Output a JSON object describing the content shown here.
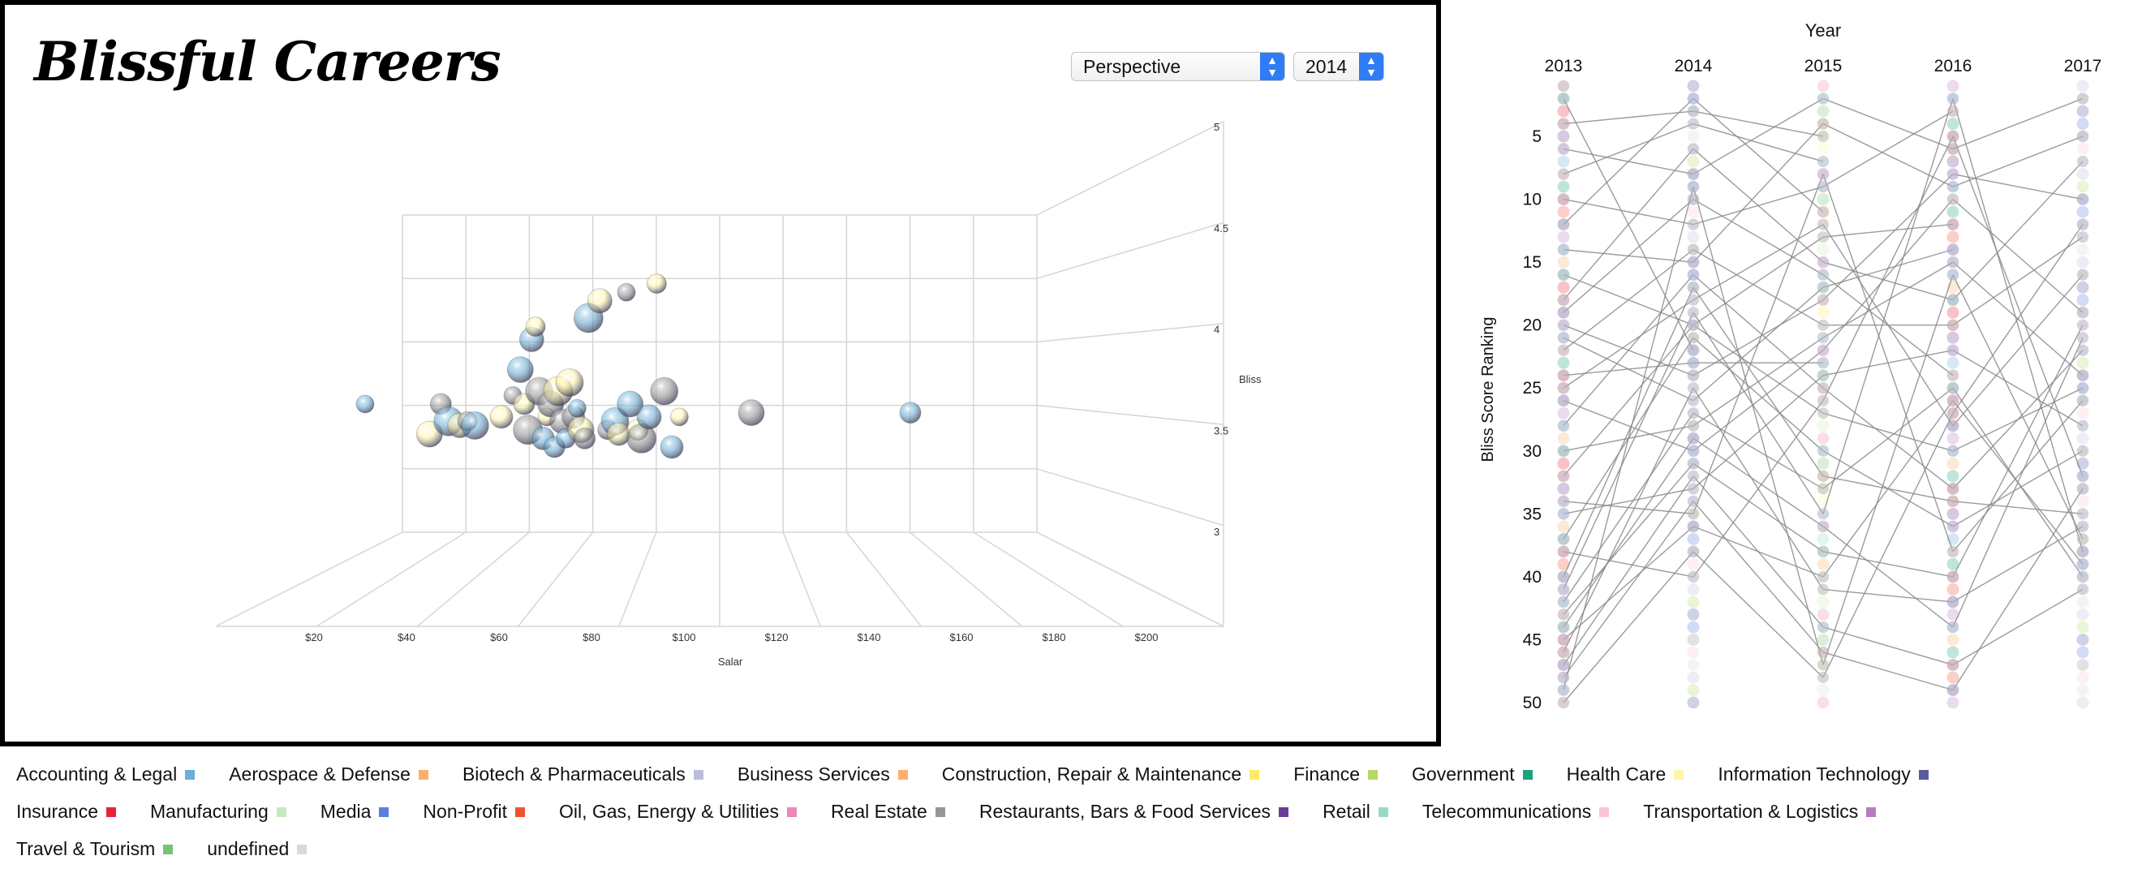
{
  "page": {
    "title": "Blissful Careers"
  },
  "controls": {
    "view_select": "Perspective",
    "year_select": "2014"
  },
  "chart_data": [
    {
      "type": "scatter",
      "title": "",
      "xlabel": "Salar",
      "ylabel": "Bliss",
      "x_ticks": [
        "$20",
        "$40",
        "$60",
        "$80",
        "$100",
        "$120",
        "$140",
        "$160",
        "$180",
        "$200"
      ],
      "y_ticks": [
        "3",
        "3.5",
        "4",
        "4.5",
        "5"
      ],
      "xlim": [
        10,
        210
      ],
      "ylim": [
        3,
        5
      ],
      "series": [
        {
          "values": [
            {
              "x": 16,
              "y": 3.7
            },
            {
              "x": 33,
              "y": 3.63
            },
            {
              "x": 36,
              "y": 3.7
            },
            {
              "x": 38,
              "y": 3.66
            },
            {
              "x": 41,
              "y": 3.65
            },
            {
              "x": 43,
              "y": 3.66
            },
            {
              "x": 45,
              "y": 3.65
            },
            {
              "x": 52,
              "y": 3.67
            },
            {
              "x": 55,
              "y": 3.72
            },
            {
              "x": 57,
              "y": 3.78
            },
            {
              "x": 58,
              "y": 3.7
            },
            {
              "x": 59,
              "y": 3.64
            },
            {
              "x": 60,
              "y": 3.85
            },
            {
              "x": 61,
              "y": 3.88
            },
            {
              "x": 62,
              "y": 3.73
            },
            {
              "x": 63,
              "y": 3.62
            },
            {
              "x": 64,
              "y": 3.67
            },
            {
              "x": 65,
              "y": 3.7
            },
            {
              "x": 66,
              "y": 3.6
            },
            {
              "x": 67,
              "y": 3.73
            },
            {
              "x": 68,
              "y": 3.66
            },
            {
              "x": 69,
              "y": 3.62
            },
            {
              "x": 70,
              "y": 3.75
            },
            {
              "x": 71,
              "y": 3.67
            },
            {
              "x": 72,
              "y": 3.69
            },
            {
              "x": 73,
              "y": 3.64
            },
            {
              "x": 74,
              "y": 3.62
            },
            {
              "x": 75,
              "y": 3.9
            },
            {
              "x": 78,
              "y": 3.94
            },
            {
              "x": 80,
              "y": 3.64
            },
            {
              "x": 82,
              "y": 3.66
            },
            {
              "x": 83,
              "y": 3.63
            },
            {
              "x": 85,
              "y": 3.96
            },
            {
              "x": 86,
              "y": 3.7
            },
            {
              "x": 88,
              "y": 3.64
            },
            {
              "x": 89,
              "y": 3.62
            },
            {
              "x": 91,
              "y": 3.67
            },
            {
              "x": 93,
              "y": 3.98
            },
            {
              "x": 95,
              "y": 3.73
            },
            {
              "x": 97,
              "y": 3.6
            },
            {
              "x": 99,
              "y": 3.67
            },
            {
              "x": 118,
              "y": 3.68
            },
            {
              "x": 160,
              "y": 3.68
            }
          ]
        }
      ]
    },
    {
      "type": "line",
      "title": "Year",
      "ylabel": "Bliss Score Ranking",
      "categories": [
        "2013",
        "2014",
        "2015",
        "2016",
        "2017"
      ],
      "y_ticks": [
        5,
        10,
        15,
        20,
        25,
        30,
        35,
        40,
        45,
        50
      ],
      "ylim": [
        1,
        50
      ],
      "rank_lines": [
        [
          1,
          null,
          null,
          null,
          null
        ],
        [
          2,
          22,
          null,
          null,
          null
        ],
        [
          4,
          3,
          5,
          null,
          null
        ],
        [
          6,
          8,
          2,
          6,
          2
        ],
        [
          8,
          4,
          7,
          null,
          null
        ],
        [
          10,
          12,
          9,
          3,
          null
        ],
        [
          12,
          2,
          11,
          null,
          null
        ],
        [
          14,
          15,
          4,
          9,
          5
        ],
        [
          16,
          20,
          13,
          12,
          null
        ],
        [
          18,
          6,
          15,
          18,
          7
        ],
        [
          19,
          10,
          16,
          24,
          null
        ],
        [
          20,
          24,
          18,
          8,
          10
        ],
        [
          21,
          26,
          17,
          14,
          null
        ],
        [
          22,
          14,
          20,
          20,
          13
        ],
        [
          24,
          23,
          23,
          null,
          null
        ],
        [
          25,
          18,
          12,
          28,
          16
        ],
        [
          26,
          30,
          22,
          10,
          19
        ],
        [
          28,
          16,
          25,
          33,
          22
        ],
        [
          30,
          28,
          21,
          15,
          24
        ],
        [
          32,
          20,
          27,
          30,
          25
        ],
        [
          34,
          35,
          8,
          38,
          26
        ],
        [
          35,
          33,
          24,
          22,
          28
        ],
        [
          37,
          21,
          30,
          36,
          30
        ],
        [
          38,
          40,
          26,
          5,
          32
        ],
        [
          40,
          17,
          32,
          34,
          35
        ],
        [
          41,
          19,
          35,
          2,
          38
        ],
        [
          42,
          27,
          33,
          25,
          40
        ],
        [
          43,
          31,
          38,
          40,
          20
        ],
        [
          44,
          29,
          36,
          44,
          21
        ],
        [
          45,
          36,
          40,
          26,
          39
        ],
        [
          46,
          25,
          41,
          42,
          36
        ],
        [
          47,
          32,
          44,
          47,
          41
        ],
        [
          48,
          34,
          46,
          49,
          33
        ],
        [
          49,
          9,
          47,
          16,
          37
        ],
        [
          50,
          38,
          48,
          27,
          12
        ]
      ]
    }
  ],
  "legend": {
    "items": [
      {
        "label": "Accounting & Legal",
        "color": "#6baed6"
      },
      {
        "label": "Aerospace & Defense",
        "color": "#fdae6b"
      },
      {
        "label": "Biotech & Pharmaceuticals",
        "color": "#bcbddc"
      },
      {
        "label": "Business Services",
        "color": "#fdae6b"
      },
      {
        "label": "Construction, Repair & Maintenance",
        "color": "#ffeb66"
      },
      {
        "label": "Finance",
        "color": "#b5d96b"
      },
      {
        "label": "Government",
        "color": "#1aa37a"
      },
      {
        "label": "Health Care",
        "color": "#fff4a8"
      },
      {
        "label": "Information Technology",
        "color": "#5a5aa0"
      },
      {
        "label": "Insurance",
        "color": "#e8203a"
      },
      {
        "label": "Manufacturing",
        "color": "#c7e9c0"
      },
      {
        "label": "Media",
        "color": "#5b7fe0"
      },
      {
        "label": "Non-Profit",
        "color": "#f2542d"
      },
      {
        "label": "Oil, Gas, Energy & Utilities",
        "color": "#ee88b8"
      },
      {
        "label": "Real Estate",
        "color": "#969696"
      },
      {
        "label": "Restaurants, Bars & Food Services",
        "color": "#6a3d9a"
      },
      {
        "label": "Retail",
        "color": "#99d8c9"
      },
      {
        "label": "Telecommunications",
        "color": "#fcc5d5"
      },
      {
        "label": "Transportation & Logistics",
        "color": "#b77cc0"
      },
      {
        "label": "Travel & Tourism",
        "color": "#74c476"
      },
      {
        "label": "undefined",
        "color": "#d9d9d9"
      }
    ]
  }
}
